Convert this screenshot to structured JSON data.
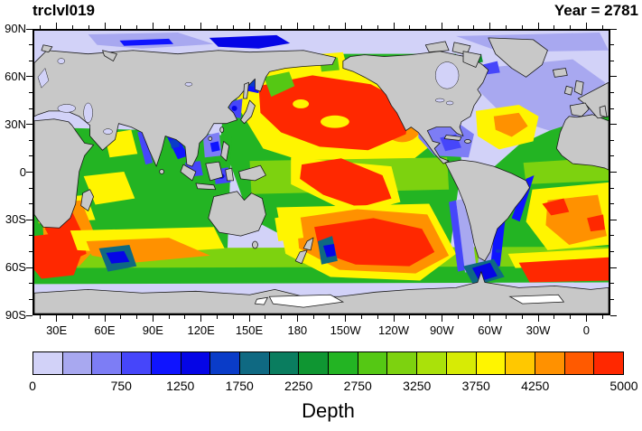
{
  "header": {
    "title_left": "trclvl019",
    "title_right": "Year = 2781"
  },
  "chart_data": {
    "type": "heatmap",
    "title": "trclvl019",
    "annotation": "Year = 2781",
    "projection": "global cylindrical lat-lon world map, filled contours over ocean, gray land",
    "colorbar_label": "Depth",
    "land_color": "#c8c8c8",
    "ice_shelf_color": "#ffffff",
    "x_axis": {
      "range_deg": [
        15,
        375
      ],
      "minor_tick_step_deg": 10,
      "ticks": [
        {
          "label": "30E",
          "deg": 30
        },
        {
          "label": "60E",
          "deg": 60
        },
        {
          "label": "90E",
          "deg": 90
        },
        {
          "label": "120E",
          "deg": 120
        },
        {
          "label": "150E",
          "deg": 150
        },
        {
          "label": "180",
          "deg": 180
        },
        {
          "label": "150W",
          "deg": 210
        },
        {
          "label": "120W",
          "deg": 240
        },
        {
          "label": "90W",
          "deg": 270
        },
        {
          "label": "60W",
          "deg": 300
        },
        {
          "label": "30W",
          "deg": 330
        },
        {
          "label": "0",
          "deg": 360
        }
      ]
    },
    "y_axis": {
      "range_deg": [
        -90,
        90
      ],
      "minor_tick_step_deg": 10,
      "ticks": [
        {
          "label": "90N",
          "deg": 90
        },
        {
          "label": "60N",
          "deg": 60
        },
        {
          "label": "30N",
          "deg": 30
        },
        {
          "label": "0",
          "deg": 0
        },
        {
          "label": "30S",
          "deg": -30
        },
        {
          "label": "60S",
          "deg": -60
        },
        {
          "label": "90S",
          "deg": -90
        }
      ]
    },
    "colorbar": {
      "min": 0,
      "max": 5000,
      "level_step": 250,
      "tick_labels": [
        "0",
        "750",
        "1250",
        "1750",
        "2250",
        "2750",
        "3250",
        "3750",
        "4250",
        "5000"
      ],
      "tick_values": [
        0,
        750,
        1250,
        1750,
        2250,
        2750,
        3250,
        3750,
        4250,
        5000
      ],
      "colors": [
        "#d2d2f8",
        "#a8a8f0",
        "#7d7df5",
        "#4646fa",
        "#0f14ff",
        "#0505e6",
        "#0a3cc8",
        "#0f6982",
        "#0a7d5f",
        "#0f9632",
        "#23b423",
        "#55c814",
        "#7dd20f",
        "#aae10a",
        "#d7eb05",
        "#fff500",
        "#ffc800",
        "#ff9100",
        "#ff5a00",
        "#ff2800"
      ]
    },
    "notable_features": [
      "Deep red maxima (~5000) in North Pacific subtropical gyre",
      "Red maxima in South Pacific and along Agulhas/Southern Ocean bands",
      "Orange-yellow maximum in North and South Atlantic subtropical gyres",
      "Low lavender values (~0-500) in Arctic, northern North Atlantic, Mediterranean and continental shelves",
      "Dark blue pockets in Sea of Okhotsk, Kerguelen region, Drake Passage",
      "Green mid-range values across Indian Ocean and tropics",
      "White ice-shelf regions on Antarctica"
    ]
  }
}
